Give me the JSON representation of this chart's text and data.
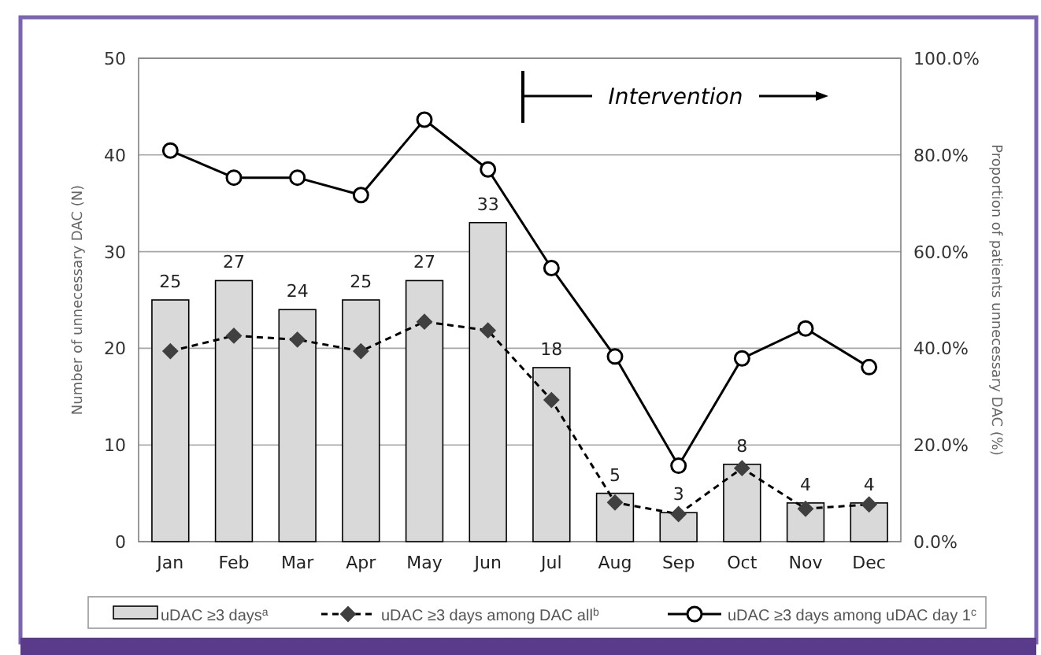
{
  "chart_data": {
    "type": "bar",
    "categories": [
      "Jan",
      "Feb",
      "Mar",
      "Apr",
      "May",
      "Jun",
      "Jul",
      "Aug",
      "Sep",
      "Oct",
      "Nov",
      "Dec"
    ],
    "ylabel": "Number of unnecessary DAC (N)",
    "y2label": "Proportion of patients unnecessary DAC (%)",
    "ylim": [
      0,
      50
    ],
    "yticks": [
      0,
      10,
      20,
      30,
      40,
      50
    ],
    "y2lim": [
      0,
      100
    ],
    "y2ticks": [
      {
        "value": 0,
        "label": "0.0%"
      },
      {
        "value": 20,
        "label": "20.0%"
      },
      {
        "value": 40,
        "label": "40.0%"
      },
      {
        "value": 60,
        "label": "60.0%"
      },
      {
        "value": 80,
        "label": "80.0%"
      },
      {
        "value": 100,
        "label": "100.0%"
      }
    ],
    "grid": "y",
    "legend": "bottom",
    "annotations": [
      "Intervention"
    ],
    "series": [
      {
        "name": "uDAC ≥3 days$^{a}$",
        "color": "#d9d9d9",
        "values": [
          25,
          27,
          24,
          25,
          27,
          33,
          18,
          5,
          3,
          8,
          4,
          4
        ],
        "data_labels": true
      },
      {
        "name": "uDAC ≥3 days among DAC all$^{b}$",
        "type": "line",
        "axis": "y2",
        "color": "#000000",
        "marker": "diamond",
        "line_style": "dashed",
        "values": [
          39.4,
          42.6,
          41.8,
          39.4,
          45.5,
          43.7,
          29.3,
          8.1,
          5.7,
          15.2,
          6.8,
          7.7
        ]
      },
      {
        "name": "uDAC ≥3 days among uDAC day 1$^{c}$",
        "type": "line",
        "axis": "y2",
        "color": "#000000",
        "marker": "circle",
        "line_style": "solid",
        "values": [
          80.9,
          75.3,
          75.3,
          71.7,
          87.3,
          77,
          56.6,
          38.3,
          15.7,
          37.9,
          44.1,
          36.1
        ]
      }
    ]
  }
}
